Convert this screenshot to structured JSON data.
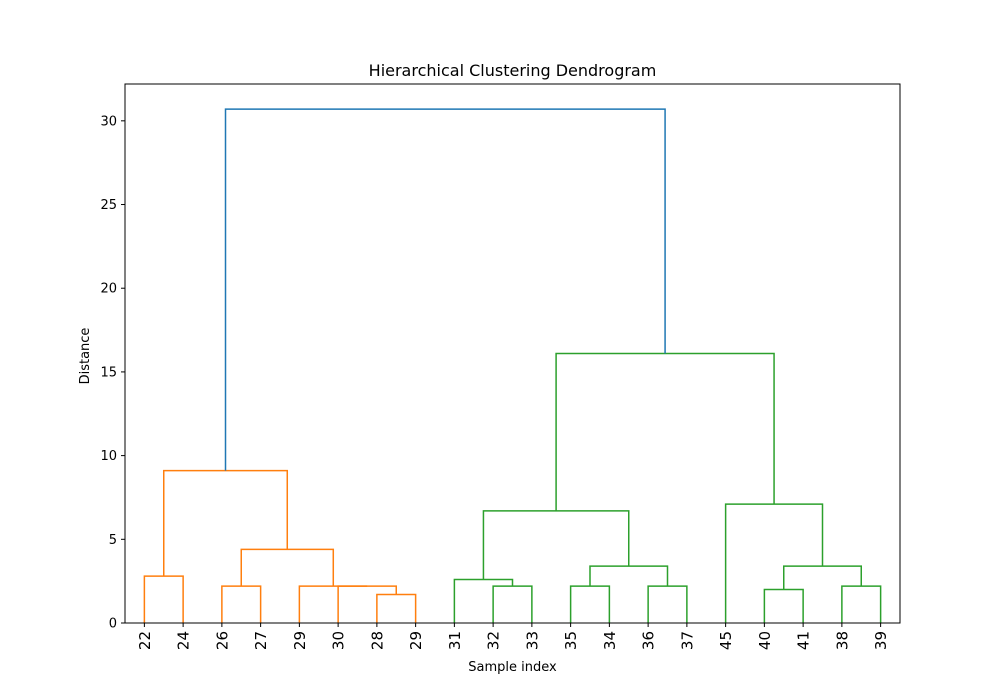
{
  "chart_data": {
    "type": "dendrogram",
    "title": "Hierarchical Clustering Dendrogram",
    "xlabel": "Sample index",
    "ylabel": "Distance",
    "ylim": [
      0,
      32.2
    ],
    "yticks": [
      0,
      5,
      10,
      15,
      20,
      25,
      30
    ],
    "leaf_labels": [
      "22",
      "24",
      "26",
      "27",
      "29",
      "30",
      "28",
      "29",
      "31",
      "32",
      "33",
      "35",
      "34",
      "36",
      "37",
      "45",
      "40",
      "41",
      "38",
      "39"
    ],
    "colors": {
      "root": "#1f77b4",
      "cluster_1": "#ff7f0e",
      "cluster_2": "#2ca02c"
    },
    "merges": [
      {
        "left": 0,
        "right": 1,
        "height": 2.8,
        "color": "cluster_1"
      },
      {
        "left": 2,
        "right": 3,
        "height": 2.2,
        "color": "cluster_1"
      },
      {
        "left": 6,
        "right": 7,
        "height": 1.7,
        "color": "cluster_1"
      },
      {
        "left": 5,
        "right": 22,
        "height": 2.2,
        "color": "cluster_1"
      },
      {
        "left": 4,
        "right": 23,
        "height": 2.2,
        "color": "cluster_1"
      },
      {
        "left": 21,
        "right": 24,
        "height": 4.4,
        "color": "cluster_1"
      },
      {
        "left": 20,
        "right": 25,
        "height": 9.1,
        "color": "cluster_1"
      },
      {
        "left": 9,
        "right": 10,
        "height": 2.2,
        "color": "cluster_2"
      },
      {
        "left": 8,
        "right": 27,
        "height": 2.6,
        "color": "cluster_2"
      },
      {
        "left": 11,
        "right": 12,
        "height": 2.2,
        "color": "cluster_2"
      },
      {
        "left": 13,
        "right": 14,
        "height": 2.2,
        "color": "cluster_2"
      },
      {
        "left": 29,
        "right": 30,
        "height": 3.4,
        "color": "cluster_2"
      },
      {
        "left": 28,
        "right": 31,
        "height": 6.7,
        "color": "cluster_2"
      },
      {
        "left": 16,
        "right": 17,
        "height": 2.0,
        "color": "cluster_2"
      },
      {
        "left": 18,
        "right": 19,
        "height": 2.2,
        "color": "cluster_2"
      },
      {
        "left": 33,
        "right": 34,
        "height": 3.4,
        "color": "cluster_2"
      },
      {
        "left": 15,
        "right": 35,
        "height": 7.1,
        "color": "cluster_2"
      },
      {
        "left": 32,
        "right": 36,
        "height": 16.1,
        "color": "cluster_2"
      },
      {
        "left": 26,
        "right": 37,
        "height": 30.7,
        "color": "root"
      }
    ]
  }
}
